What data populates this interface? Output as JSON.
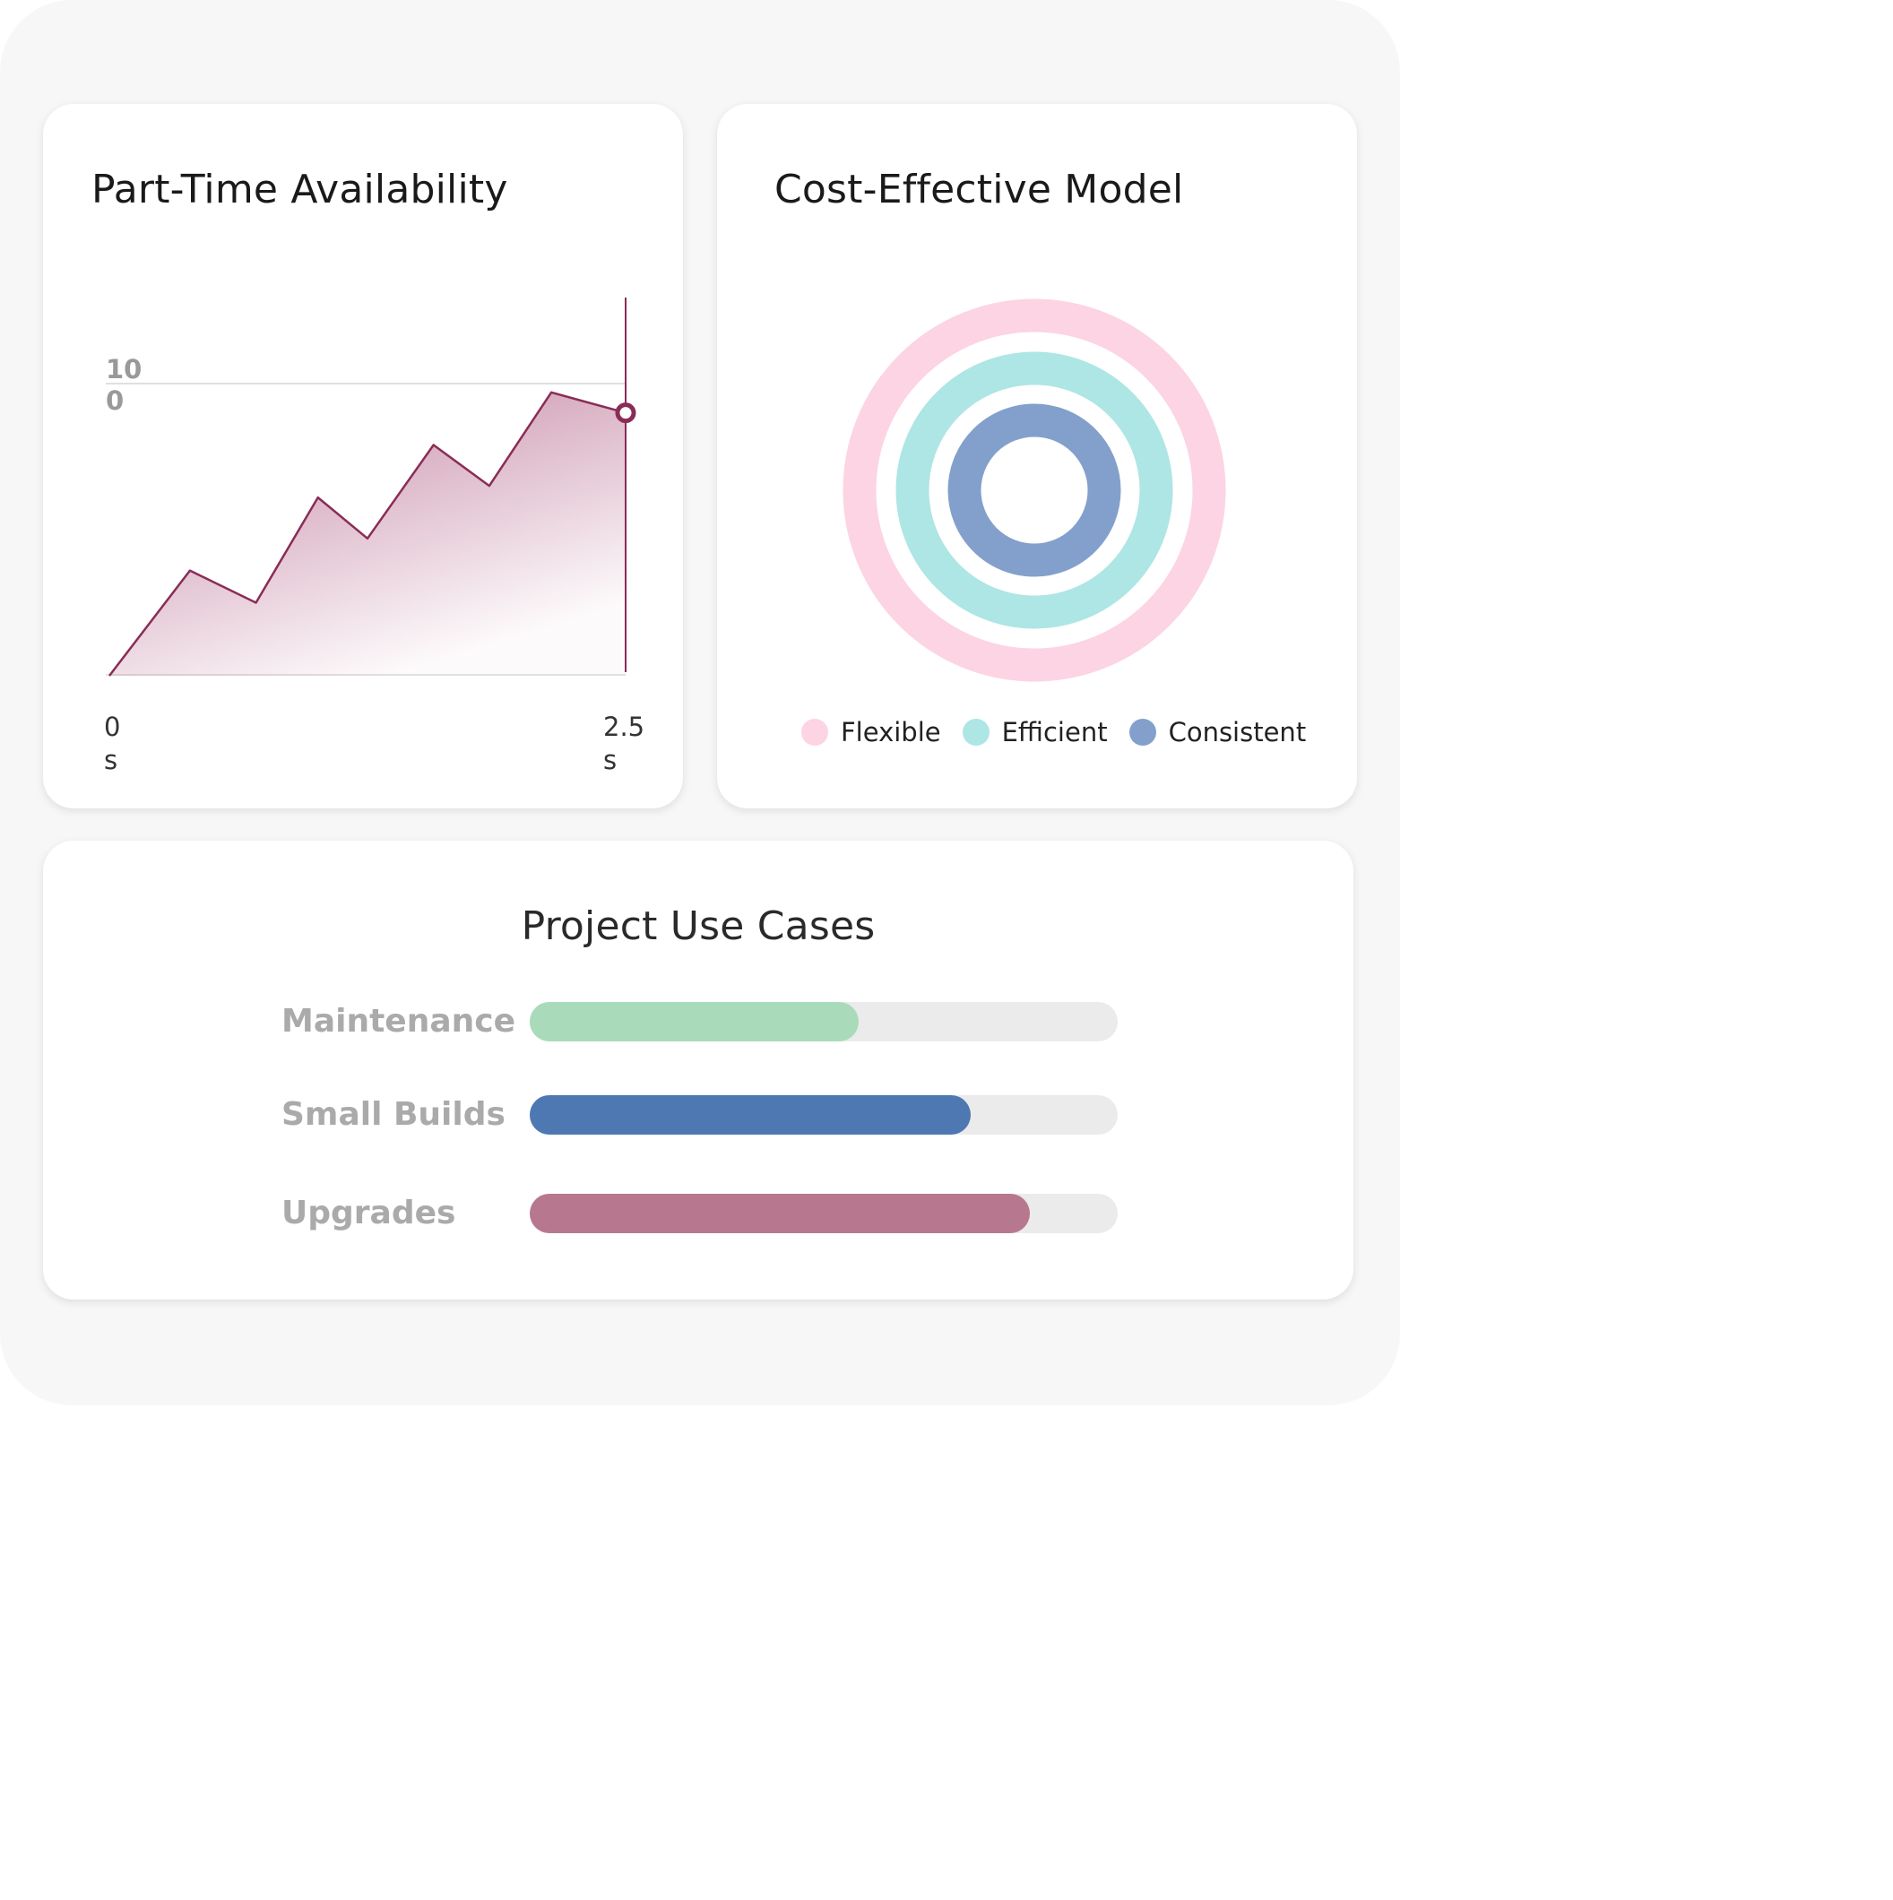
{
  "availability_card": {
    "title": "Part-Time Availability",
    "y_tick_label": "100",
    "x_start_label": "0s",
    "x_end_label": "2.5s"
  },
  "chart_data": {
    "type": "area",
    "xlabel": "",
    "ylabel": "",
    "x_range": [
      0,
      2.5
    ],
    "y_tick": 100,
    "x": [
      0,
      0.39,
      0.71,
      1.01,
      1.25,
      1.57,
      1.84,
      2.14,
      2.5
    ],
    "values": [
      0,
      36,
      25,
      61,
      47,
      79,
      65,
      97,
      90
    ],
    "highlight_x": 2.5,
    "line_color": "#8a2c56",
    "grid": true
  },
  "cost_card": {
    "title": "Cost-Effective Model",
    "rings": [
      {
        "name": "Flexible",
        "color": "#fcd4e3"
      },
      {
        "name": "Efficient",
        "color": "#ade6e4"
      },
      {
        "name": "Consistent",
        "color": "#82a0cb"
      }
    ]
  },
  "use_cases_card": {
    "title": "Project Use Cases",
    "bars": [
      {
        "label": "Maintenance",
        "fraction": 0.56,
        "color": "#a9dbbb"
      },
      {
        "label": "Small Builds",
        "fraction": 0.75,
        "color": "#4e78b1"
      },
      {
        "label": "Upgrades",
        "fraction": 0.85,
        "color": "#b7788f"
      }
    ]
  }
}
